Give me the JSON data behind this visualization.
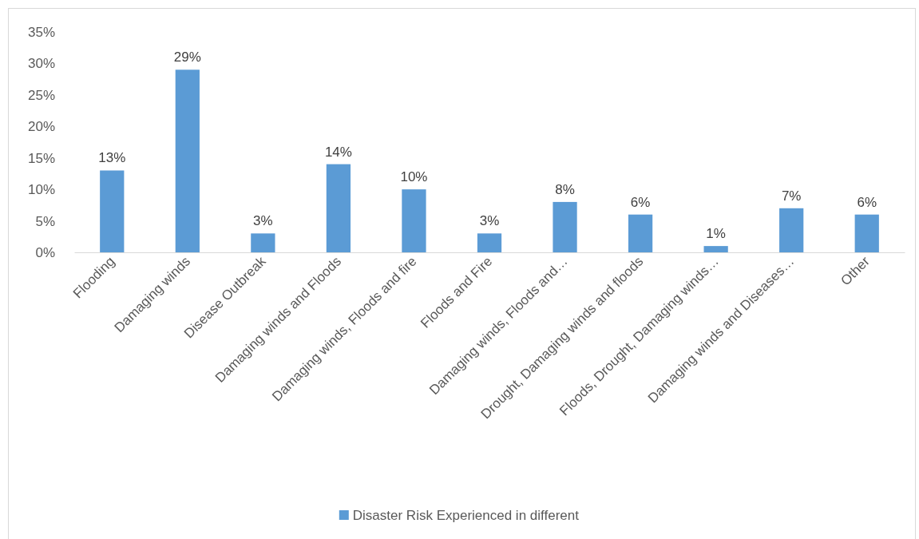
{
  "chart_data": {
    "type": "bar",
    "categories": [
      "Flooding",
      "Damaging winds",
      "Disease Outbreak",
      "Damaging winds and Floods",
      "Damaging winds, Floods and fire",
      "Floods and Fire",
      "Damaging winds, Floods and…",
      "Drought, Damaging winds and floods",
      "Floods, Drought, Damaging winds…",
      "Damaging winds and Diseases…",
      "Other"
    ],
    "series": [
      {
        "name": "Disaster Risk Experienced in different",
        "color": "#5b9bd5",
        "values": [
          13,
          29,
          3,
          14,
          10,
          3,
          8,
          6,
          1,
          7,
          6
        ],
        "value_labels": [
          "13%",
          "29%",
          "3%",
          "14%",
          "10%",
          "3%",
          "8%",
          "6%",
          "1%",
          "7%",
          "6%"
        ]
      }
    ],
    "ylim": [
      0,
      35
    ],
    "yticks": [
      {
        "value": 0,
        "label": "0%"
      },
      {
        "value": 5,
        "label": "5%"
      },
      {
        "value": 10,
        "label": "10%"
      },
      {
        "value": 15,
        "label": "15%"
      },
      {
        "value": 20,
        "label": "20%"
      },
      {
        "value": 25,
        "label": "25%"
      },
      {
        "value": 30,
        "label": "30%"
      },
      {
        "value": 35,
        "label": "35%"
      }
    ],
    "grid": false,
    "legend": "bottom"
  }
}
